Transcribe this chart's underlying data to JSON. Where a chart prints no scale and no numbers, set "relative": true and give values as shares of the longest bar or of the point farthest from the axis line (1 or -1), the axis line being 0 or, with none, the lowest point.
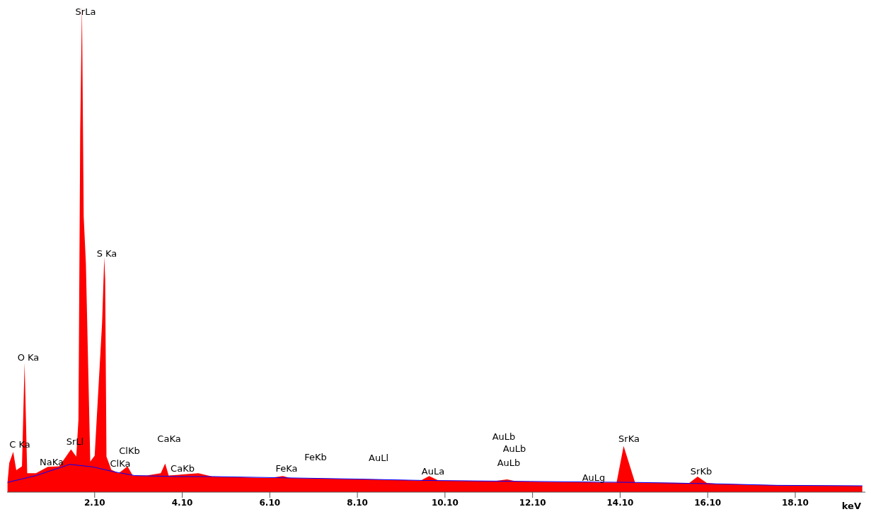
{
  "chart_data": {
    "type": "area",
    "relative": true,
    "xlabel": "keV",
    "xlim": [
      0.1,
      19.7
    ],
    "xticks": [
      {
        "value": 2.1,
        "label": "2.10"
      },
      {
        "value": 4.1,
        "label": "4.10"
      },
      {
        "value": 6.1,
        "label": "6.10"
      },
      {
        "value": 8.1,
        "label": "8.10"
      },
      {
        "value": 10.1,
        "label": "10.10"
      },
      {
        "value": 12.1,
        "label": "12.10"
      },
      {
        "value": 14.1,
        "label": "14.10"
      },
      {
        "value": 16.1,
        "label": "16.10"
      },
      {
        "value": 18.1,
        "label": "18.10"
      }
    ],
    "grid": false,
    "series": [
      {
        "color": "#ff0000",
        "x": [
          0.11,
          0.15,
          0.24,
          0.31,
          0.44,
          0.5,
          0.56,
          0.76,
          1.03,
          1.29,
          1.56,
          1.68,
          1.73,
          1.76,
          1.77,
          1.81,
          1.85,
          1.9,
          2.0,
          2.1,
          2.27,
          2.32,
          2.34,
          2.37,
          2.48,
          2.65,
          2.85,
          2.97,
          3.29,
          3.61,
          3.71,
          3.79,
          4.47,
          4.79,
          6.1,
          6.4,
          6.56,
          8.02,
          9.55,
          9.74,
          9.95,
          11.24,
          11.52,
          11.73,
          13.66,
          14.02,
          14.18,
          14.44,
          15.68,
          15.87,
          16.08,
          16.32,
          17.69,
          19.63
        ],
        "values": [
          0.02,
          0.06,
          0.083,
          0.045,
          0.053,
          0.266,
          0.039,
          0.039,
          0.052,
          0.053,
          0.088,
          0.073,
          0.149,
          0.585,
          0.741,
          1.0,
          0.566,
          0.47,
          0.063,
          0.075,
          0.348,
          0.483,
          0.437,
          0.073,
          0.046,
          0.039,
          0.053,
          0.034,
          0.034,
          0.039,
          0.059,
          0.034,
          0.039,
          0.032,
          0.029,
          0.033,
          0.029,
          0.027,
          0.024,
          0.033,
          0.024,
          0.023,
          0.026,
          0.022,
          0.02,
          0.02,
          0.095,
          0.02,
          0.019,
          0.032,
          0.019,
          0.017,
          0.014,
          0.013
        ]
      },
      {
        "type": "line",
        "color": "#0000ff",
        "x": [
          0.11,
          0.76,
          1.53,
          2.05,
          2.53,
          3.02,
          3.98,
          4.79,
          8.02,
          9.63,
          12.05,
          14.47,
          16.32,
          17.69,
          19.63
        ],
        "values": [
          0.02,
          0.034,
          0.057,
          0.052,
          0.042,
          0.034,
          0.032,
          0.032,
          0.027,
          0.024,
          0.022,
          0.02,
          0.017,
          0.014,
          0.013
        ]
      }
    ],
    "annotations": [
      "C Ka",
      "O Ka",
      "SrLa",
      "S Ka",
      "NaKa",
      "SrLl",
      "ClKb",
      "ClKa",
      "CaKa",
      "CaKb",
      "FeKa",
      "FeKb",
      "AuLl",
      "AuLa",
      "AuLb",
      "AuLb",
      "AuLb",
      "AuLg",
      "SrKa",
      "SrKb"
    ]
  }
}
